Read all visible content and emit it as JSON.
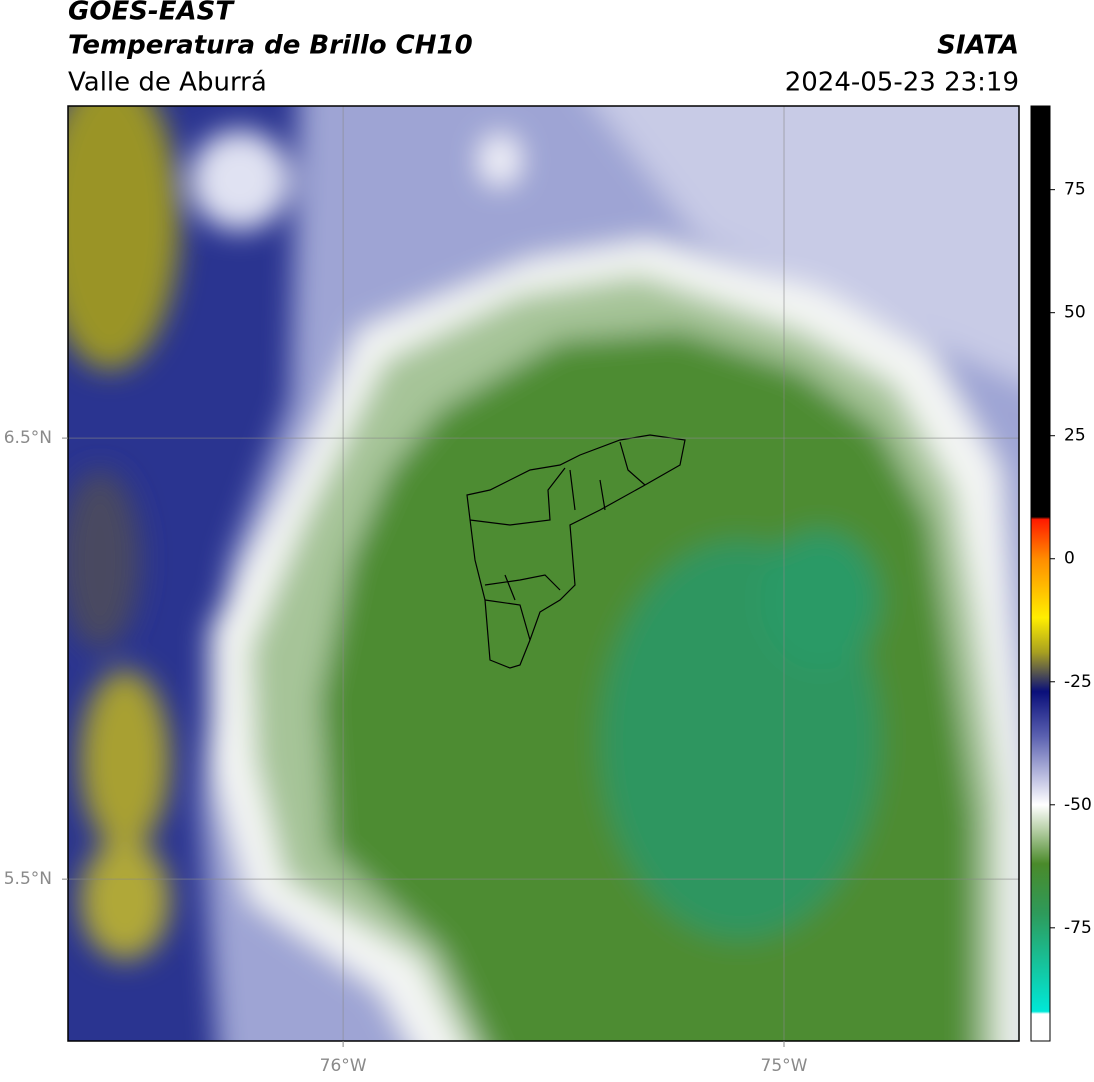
{
  "map": {
    "title": "GOES-EAST",
    "product": "Temperatura de Brillo CH10",
    "region": "Valle de Aburrá",
    "source": "SIATA",
    "datetime": "2024-05-23 23:19",
    "xlim": [
      -76.624,
      -74.467
    ],
    "ylim": [
      5.133,
      7.253
    ],
    "xticks": [
      {
        "value": -76,
        "label": "76°W"
      },
      {
        "value": -75,
        "label": "75°W"
      }
    ],
    "yticks": [
      {
        "value": 6.5,
        "label": "6.5°N"
      },
      {
        "value": 5.5,
        "label": "5.5°N"
      }
    ],
    "grid": true,
    "colorbar": {
      "lim": [
        -98,
        92
      ],
      "ticks": [
        75,
        50,
        25,
        0,
        -25,
        -50,
        -75
      ],
      "stops": [
        {
          "value": 92,
          "color": "#000000"
        },
        {
          "value": 8.5,
          "color": "#000000"
        },
        {
          "value": 8,
          "color": "#ff1a00"
        },
        {
          "value": 0,
          "color": "#ff8c00"
        },
        {
          "value": -12,
          "color": "#ffee00"
        },
        {
          "value": -19,
          "color": "#a8a020"
        },
        {
          "value": -27,
          "color": "#0a0f7a"
        },
        {
          "value": -36,
          "color": "#5a60b0"
        },
        {
          "value": -45,
          "color": "#c4c6e4"
        },
        {
          "value": -50,
          "color": "#ffffff"
        },
        {
          "value": -55,
          "color": "#b8d0a8"
        },
        {
          "value": -62,
          "color": "#4a8a2a"
        },
        {
          "value": -72,
          "color": "#2e9a5a"
        },
        {
          "value": -92,
          "color": "#00e8d8"
        },
        {
          "value": -92.5,
          "color": "#ffffff"
        },
        {
          "value": -98,
          "color": "#ffffff"
        }
      ]
    }
  }
}
